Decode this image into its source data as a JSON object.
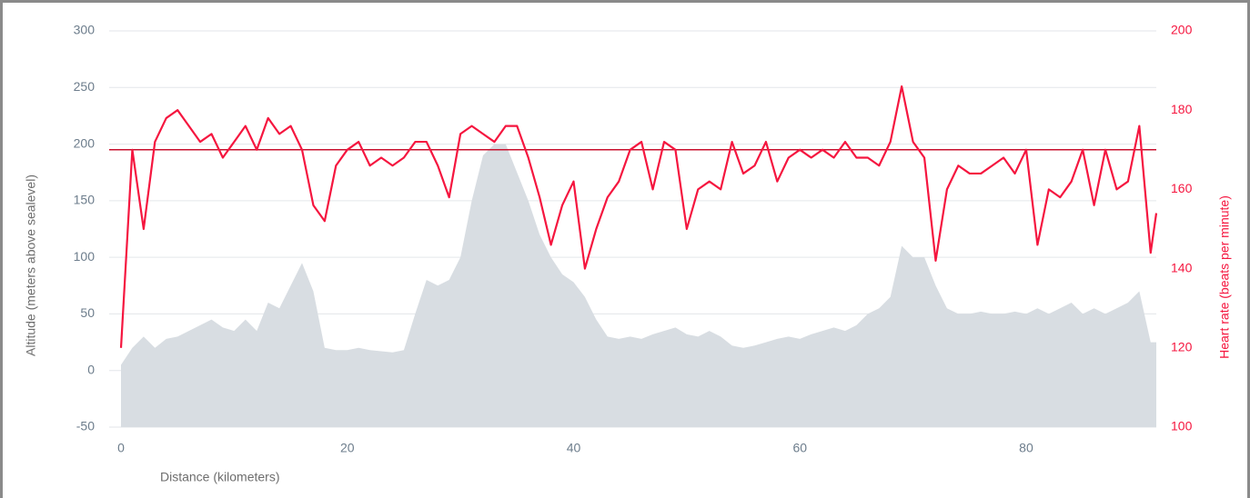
{
  "chart_data": {
    "type": "line",
    "x_label": "Distance (kilometers)",
    "y_label": "Altitude (meters above sealevel)",
    "y2_label": "Heart rate (beats per minute)",
    "xlim": [
      0,
      91.5
    ],
    "xticks": [
      0,
      20,
      40,
      60,
      80
    ],
    "ylim": [
      -50,
      300
    ],
    "yticks": [
      -50,
      0,
      50,
      100,
      150,
      200,
      250,
      300
    ],
    "y2lim": [
      100,
      200
    ],
    "y2ticks": [
      100,
      120,
      140,
      160,
      180,
      200
    ],
    "grid": true,
    "x": [
      0,
      1,
      2,
      3,
      4,
      5,
      6,
      7,
      8,
      9,
      10,
      11,
      12,
      13,
      14,
      15,
      16,
      17,
      18,
      19,
      20,
      21,
      22,
      23,
      24,
      25,
      26,
      27,
      28,
      29,
      30,
      31,
      32,
      33,
      34,
      35,
      36,
      37,
      38,
      39,
      40,
      41,
      42,
      43,
      44,
      45,
      46,
      47,
      48,
      49,
      50,
      51,
      52,
      53,
      54,
      55,
      56,
      57,
      58,
      59,
      60,
      61,
      62,
      63,
      64,
      65,
      66,
      67,
      68,
      69,
      70,
      71,
      72,
      73,
      74,
      75,
      76,
      77,
      78,
      79,
      80,
      81,
      82,
      83,
      84,
      85,
      86,
      87,
      88,
      89,
      90,
      91,
      91.5
    ],
    "series": [
      {
        "name": "Altitude",
        "type": "area",
        "color": "#d8dde2",
        "values": [
          5,
          20,
          30,
          20,
          28,
          30,
          35,
          40,
          45,
          38,
          35,
          45,
          35,
          60,
          55,
          75,
          95,
          70,
          20,
          18,
          18,
          20,
          18,
          17,
          16,
          18,
          50,
          80,
          75,
          80,
          100,
          150,
          190,
          200,
          200,
          175,
          150,
          120,
          100,
          85,
          78,
          65,
          45,
          30,
          28,
          30,
          28,
          32,
          35,
          38,
          32,
          30,
          35,
          30,
          22,
          20,
          22,
          25,
          28,
          30,
          28,
          32,
          35,
          38,
          35,
          40,
          50,
          55,
          65,
          110,
          100,
          100,
          75,
          55,
          50,
          50,
          52,
          50,
          50,
          52,
          50,
          55,
          50,
          55,
          60,
          50,
          55,
          50,
          55,
          60,
          70,
          25,
          25
        ]
      },
      {
        "name": "Heart rate",
        "type": "line",
        "axis": "y2",
        "color": "#f5163f",
        "values": [
          120,
          170,
          150,
          172,
          178,
          180,
          176,
          172,
          174,
          168,
          172,
          176,
          170,
          178,
          174,
          176,
          170,
          156,
          152,
          166,
          170,
          172,
          166,
          168,
          166,
          168,
          172,
          172,
          166,
          158,
          174,
          176,
          174,
          172,
          176,
          176,
          168,
          158,
          146,
          156,
          162,
          140,
          150,
          158,
          162,
          170,
          172,
          160,
          172,
          170,
          150,
          160,
          162,
          160,
          172,
          164,
          166,
          172,
          162,
          168,
          170,
          168,
          170,
          168,
          172,
          168,
          168,
          166,
          172,
          186,
          172,
          168,
          142,
          160,
          166,
          164,
          164,
          166,
          168,
          164,
          170,
          146,
          160,
          158,
          162,
          170,
          156,
          170,
          160,
          162,
          176,
          144,
          154
        ]
      }
    ],
    "plot_lines": [
      {
        "value": 170,
        "axis": "y2",
        "color": "#c8102e"
      }
    ]
  }
}
